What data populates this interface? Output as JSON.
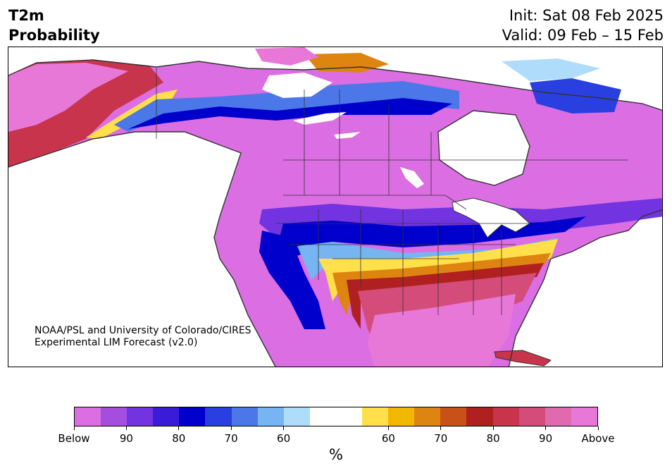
{
  "header": {
    "title_line1": "T2m",
    "title_line2": "Probability",
    "init": "Init: Sat 08 Feb 2025",
    "valid": "Valid: 09 Feb – 15 Feb"
  },
  "credit": {
    "line1": "NOAA/PSL and University of Colorado/CIRES",
    "line2": "Experimental LIM Forecast (v2.0)"
  },
  "colorbar": {
    "colors": [
      "#da6ee2",
      "#a44ee0",
      "#7134e0",
      "#3a1cd8",
      "#0000cc",
      "#2a3fe0",
      "#4b77e8",
      "#76b4f2",
      "#aedcfa",
      "#ffffff",
      "#ffffff",
      "#ffe04a",
      "#f2b800",
      "#de8410",
      "#c75116",
      "#b12020",
      "#c8344c",
      "#d44c7a",
      "#e06ab0",
      "#e878d8"
    ],
    "tick_labels": [
      "Below",
      "90",
      "80",
      "70",
      "60",
      "60",
      "70",
      "80",
      "90",
      "Above"
    ],
    "unit": "%"
  },
  "map": {
    "colors": {
      "below_strong": "#da6ee2",
      "below_mid": "#7134e0",
      "below_dark": "#0000cc",
      "below_light": "#4b77e8",
      "below_pale": "#aedcfa",
      "neutral": "#ffffff",
      "above_yellow": "#ffe04a",
      "above_gold": "#f2b800",
      "above_orange": "#de8410",
      "above_red": "#b12020",
      "above_rose": "#c8344c",
      "above_pink": "#d44c7a",
      "above_strong": "#e878d8",
      "coast": "#333333"
    }
  }
}
